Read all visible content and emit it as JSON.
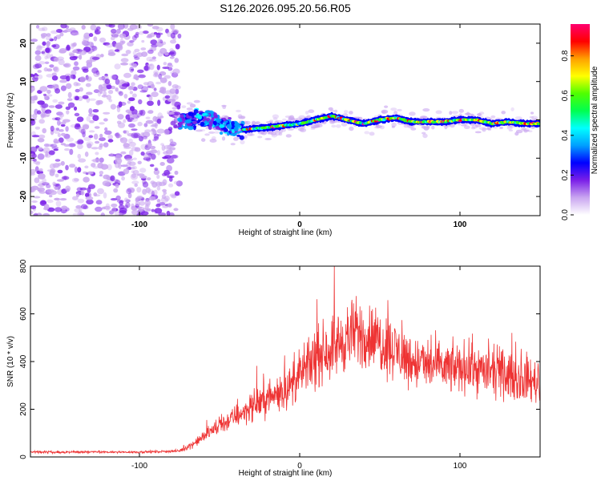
{
  "title": "S126.2026.095.20.56.R05",
  "chart_data": [
    {
      "type": "heatmap",
      "xlabel": "Height of straight line (km)",
      "ylabel": "Frequency (Hz)",
      "xlim": [
        -168,
        150
      ],
      "ylim": [
        -25,
        25
      ],
      "xticks": [
        -100,
        0,
        100
      ],
      "yticks": [
        -20,
        -10,
        0,
        10,
        20
      ],
      "colorbar": {
        "label": "Normalized spectral amplitude",
        "ticks": [
          0.0,
          0.2,
          0.4,
          0.6,
          0.8
        ],
        "range": [
          0.0,
          0.96
        ],
        "colors": [
          "#ffffff",
          "#c9a5f0",
          "#7a1fe8",
          "#0000ff",
          "#00a0ff",
          "#00ffff",
          "#00ff50",
          "#50ff00",
          "#ffff00",
          "#ffa000",
          "#ff0000",
          "#ff0070"
        ]
      },
      "regions": [
        {
          "name": "noise",
          "x_range": [
            -168,
            -75
          ],
          "freq_range": [
            -25,
            25
          ],
          "amplitude": "0.0-0.3"
        },
        {
          "name": "onset",
          "x_range": [
            -75,
            -35
          ],
          "freq_range": [
            -8,
            7
          ],
          "amplitude": "0.2-0.6"
        },
        {
          "name": "signal",
          "x_range": [
            -35,
            150
          ],
          "freq_range": [
            -3,
            3
          ],
          "amplitude": "0.4-0.96"
        }
      ],
      "ridge": {
        "x": [
          -75,
          -60,
          -45,
          -35,
          -20,
          0,
          10,
          20,
          30,
          40,
          50,
          60,
          70,
          80,
          90,
          100,
          110,
          120,
          130,
          140,
          150
        ],
        "freq": [
          -0.5,
          0.5,
          -1.5,
          -2.5,
          -2,
          -1,
          0,
          1,
          0,
          -1,
          0,
          0.5,
          -0.5,
          -0.5,
          -0.5,
          0,
          0,
          -1,
          -0.5,
          -1,
          -1
        ]
      }
    },
    {
      "type": "line",
      "xlabel": "Height of straight line (km)",
      "ylabel": "SNR (10 * v/v)",
      "xlim": [
        -168,
        150
      ],
      "ylim": [
        0,
        800
      ],
      "xticks": [
        -100,
        0,
        100
      ],
      "yticks": [
        0,
        200,
        400,
        600,
        800
      ],
      "series": [
        {
          "name": "SNR",
          "color": "#ee3333",
          "x": [
            -168,
            -150,
            -130,
            -110,
            -90,
            -75,
            -65,
            -55,
            -45,
            -35,
            -25,
            -15,
            -5,
            5,
            15,
            25,
            35,
            45,
            55,
            65,
            75,
            85,
            95,
            105,
            115,
            125,
            135,
            145,
            150
          ],
          "y": [
            22,
            20,
            21,
            20,
            22,
            25,
            60,
            110,
            150,
            190,
            230,
            260,
            300,
            380,
            440,
            480,
            520,
            500,
            470,
            420,
            390,
            380,
            370,
            380,
            360,
            350,
            330,
            320,
            310
          ]
        }
      ]
    }
  ]
}
